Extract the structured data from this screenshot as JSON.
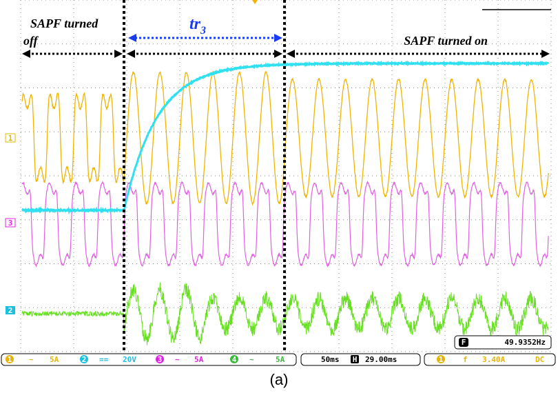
{
  "annotations": {
    "left": {
      "line1": "SAPF turned",
      "line2": "off"
    },
    "rise_time": {
      "main": "tr",
      "sub": "3"
    },
    "right": "SAPF turned on"
  },
  "channel_markers": [
    "1",
    "3",
    "2"
  ],
  "status_bar": {
    "ch1": {
      "num": "1",
      "coupling": "~",
      "scale": "5A"
    },
    "ch2": {
      "num": "2",
      "coupling": "==",
      "scale": "20V"
    },
    "ch3": {
      "num": "3",
      "coupling": "~",
      "scale": "5A"
    },
    "ch4": {
      "num": "4",
      "coupling": "~",
      "scale": "5A"
    },
    "timebase": "50ms",
    "position_icon": "H",
    "position": "29.00ms",
    "trigger_channel": "1",
    "trigger_slope": "f",
    "trigger_level": "3.40A",
    "trigger_coupling": "DC"
  },
  "frequency": {
    "icon": "F",
    "value": "49.9352Hz"
  },
  "caption": "(a)"
}
